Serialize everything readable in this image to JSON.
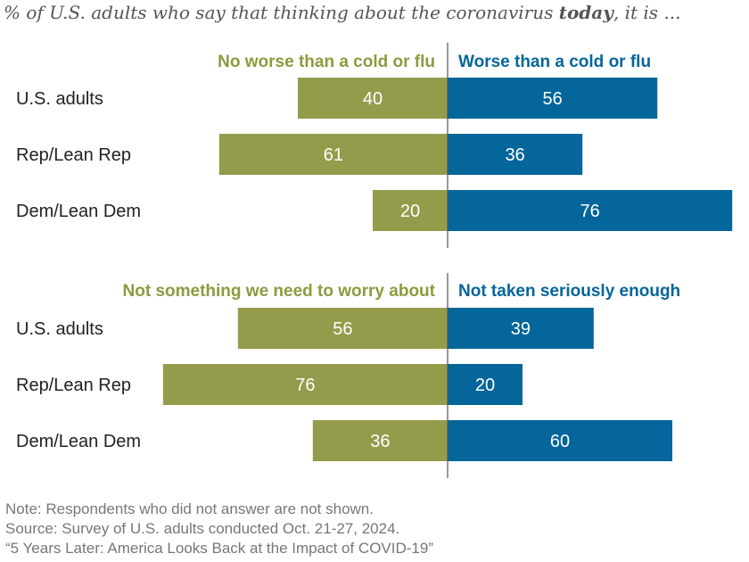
{
  "subtitle": {
    "prefix": "% of U.S. adults who say that thinking about the coronavirus ",
    "emphasis": "today",
    "suffix": ", it is ..."
  },
  "colors": {
    "left": "#949c4c",
    "right": "#04669a",
    "label_left": "#8e9a3e",
    "label_right": "#04669a",
    "value_text": "#ffffff",
    "category_text": "#222222"
  },
  "chart_data": [
    {
      "type": "bar",
      "orientation": "diverging-horizontal",
      "categories": [
        "U.S. adults",
        "Rep/Lean Rep",
        "Dem/Lean Dem"
      ],
      "series": [
        {
          "name": "No worse than a cold or flu",
          "side": "left",
          "values": [
            40,
            61,
            20
          ]
        },
        {
          "name": "Worse than a cold or flu",
          "side": "right",
          "values": [
            56,
            36,
            76
          ]
        }
      ]
    },
    {
      "type": "bar",
      "orientation": "diverging-horizontal",
      "categories": [
        "U.S. adults",
        "Rep/Lean Rep",
        "Dem/Lean Dem"
      ],
      "series": [
        {
          "name": "Not something we need to worry about",
          "side": "left",
          "values": [
            56,
            76,
            36
          ]
        },
        {
          "name": "Not taken seriously enough",
          "side": "right",
          "values": [
            39,
            20,
            60
          ]
        }
      ]
    }
  ],
  "notes": {
    "note": "Note: Respondents who did not answer are not shown.",
    "source": "Source: Survey of U.S. adults conducted Oct. 21-27, 2024.",
    "report": "“5 Years Later: America Looks Back at the Impact of COVID-19”"
  }
}
